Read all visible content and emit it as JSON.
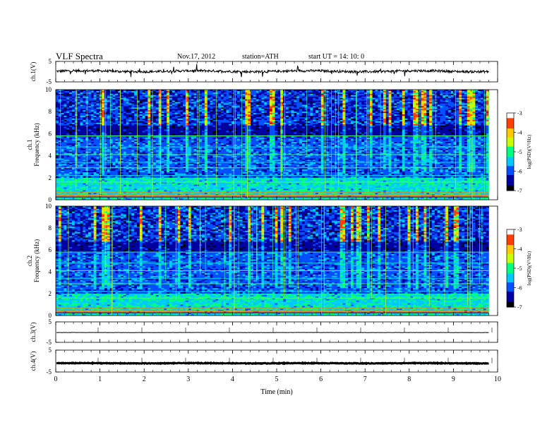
{
  "header": {
    "title": "VLF  Spectra",
    "date": "Nov.17, 2012",
    "station": "station=ATH",
    "start": "start  UT  =   14: 10: 0"
  },
  "colorbar": {
    "ticks": [
      "-3",
      "-4",
      "-5",
      "-6",
      "-7"
    ],
    "label": "log(PSD)(V²/Hz)",
    "colors": [
      "#000000",
      "#0000a0",
      "#0050ff",
      "#00c8ff",
      "#00ff80",
      "#c8ff00",
      "#ffc800",
      "#ff4000",
      "#d00000",
      "#ffffff"
    ]
  },
  "chart_data": [
    {
      "type": "line",
      "ylabel": "ch.1(V)",
      "ylim": [
        -5,
        5
      ],
      "yticks": [
        "5",
        "-5"
      ],
      "baseline": 0.2,
      "noise": 0.6,
      "color": "#000000"
    },
    {
      "type": "heatmap",
      "ylabel": "ch.1\nFrequency  (kHz)",
      "ylim": [
        0,
        10
      ],
      "yticks": [
        "0",
        "2",
        "4",
        "6",
        "8",
        "10"
      ],
      "xlim": [
        0,
        9.8
      ],
      "clim": [
        -7,
        -3
      ],
      "note": "spectrogram"
    },
    {
      "type": "heatmap",
      "ylabel": "ch.2\nFrequency  (kHz)",
      "ylim": [
        0,
        10
      ],
      "yticks": [
        "0",
        "2",
        "4",
        "6",
        "8",
        "10"
      ],
      "xlim": [
        0,
        9.8
      ],
      "clim": [
        -7,
        -3
      ],
      "note": "spectrogram"
    },
    {
      "type": "line",
      "ylabel": "ch.3(V)",
      "ylim": [
        -5,
        5
      ],
      "yticks": [
        "5",
        "-5"
      ],
      "baseline": -0.2,
      "noise": 0.05,
      "color": "#000000"
    },
    {
      "type": "line",
      "ylabel": "ch.4(V)",
      "ylim": [
        -5,
        5
      ],
      "yticks": [
        "5",
        "-5"
      ],
      "baseline": -1.0,
      "noise": 0.15,
      "color": "#000000"
    }
  ],
  "xaxis": {
    "label": "Time  (min)",
    "ticks": [
      "0",
      "1",
      "2",
      "3",
      "4",
      "5",
      "6",
      "7",
      "8",
      "9",
      "10"
    ],
    "range": [
      0,
      10
    ]
  }
}
